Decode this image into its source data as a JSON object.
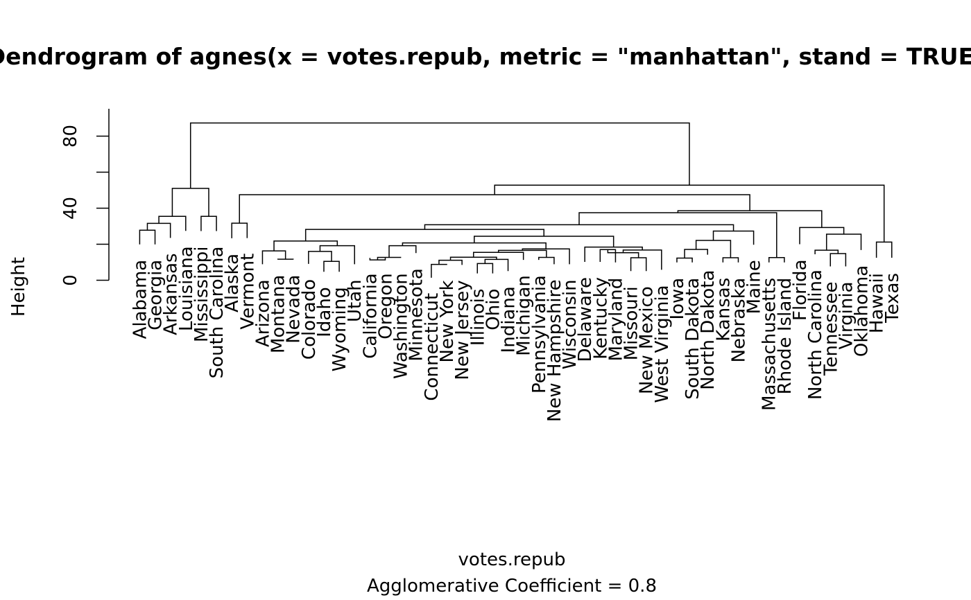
{
  "chart_data": {
    "type": "dendrogram",
    "title": "Dendrogram of  agnes(x = votes.repub, metric = \"manhattan\", stand = TRUE)",
    "xlabel": "votes.repub",
    "sublabel": "Agglomerative Coefficient =  0.8",
    "ylabel": "Height",
    "ylim": [
      0,
      95
    ],
    "yticks": [
      0,
      20,
      40,
      60,
      80
    ],
    "ytick_labels": [
      "0",
      "",
      "40",
      "",
      "80"
    ],
    "leaves": [
      "Alabama",
      "Georgia",
      "Arkansas",
      "Louisiana",
      "Mississippi",
      "South Carolina",
      "Alaska",
      "Vermont",
      "Arizona",
      "Montana",
      "Nevada",
      "Colorado",
      "Idaho",
      "Wyoming",
      "Utah",
      "California",
      "Oregon",
      "Washington",
      "Minnesota",
      "Connecticut",
      "New York",
      "New Jersey",
      "Illinois",
      "Ohio",
      "Indiana",
      "Michigan",
      "Pennsylvania",
      "New Hampshire",
      "Wisconsin",
      "Delaware",
      "Kentucky",
      "Maryland",
      "Missouri",
      "New Mexico",
      "West Virginia",
      "Iowa",
      "South Dakota",
      "North Dakota",
      "Kansas",
      "Nebraska",
      "Maine",
      "Massachusetts",
      "Rhode Island",
      "Florida",
      "North Carolina",
      "Tennessee",
      "Virginia",
      "Oklahoma",
      "Hawaii",
      "Texas"
    ],
    "leaf_heights": [
      19.9,
      19.9,
      23.5,
      27.4,
      27.3,
      27.3,
      23.3,
      23.4,
      8.9,
      11.5,
      11.5,
      9.1,
      4.7,
      4.7,
      8.9,
      12.4,
      12.4,
      12.4,
      15.1,
      1.4,
      8.5,
      8.5,
      3.8,
      3.8,
      5.1,
      11.3,
      11.3,
      8.9,
      8.9,
      10.2,
      10.2,
      9.9,
      5.1,
      5.1,
      5.8,
      9.9,
      9.9,
      14.2,
      9.9,
      9.9,
      19.7,
      9.9,
      9.9,
      20.0,
      14.4,
      7.7,
      7.7,
      16.8,
      12.5,
      12.5
    ],
    "merges": [
      {
        "left": "Alabama",
        "right": "Georgia",
        "height": 27.8
      },
      {
        "left": "Alabama,Georgia",
        "right": "Arkansas",
        "height": 31.6
      },
      {
        "left": "Alabama,Georgia,Arkansas",
        "right": "Louisiana",
        "height": 35.5
      },
      {
        "left": "Mississippi",
        "right": "South Carolina",
        "height": 35.5
      },
      {
        "left": "Alabama..Louisiana",
        "right": "Mississippi,South Carolina",
        "height": 51.0
      },
      {
        "left": "Alaska",
        "right": "Vermont",
        "height": 31.7
      },
      {
        "left": "Montana",
        "right": "Nevada",
        "height": 11.7
      },
      {
        "left": "Arizona",
        "right": "Montana,Nevada",
        "height": 16.3
      },
      {
        "left": "Idaho",
        "right": "Wyoming",
        "height": 10.5
      },
      {
        "left": "Colorado",
        "right": "Idaho,Wyoming",
        "height": 16.0
      },
      {
        "left": "Colorado,Idaho,Wyoming",
        "right": "Utah",
        "height": 19.2
      },
      {
        "left": "Arizona..Nevada",
        "right": "Colorado..Utah",
        "height": 21.8
      },
      {
        "left": "California",
        "right": "Oregon",
        "height": 11.3
      },
      {
        "left": "California,Oregon",
        "right": "Washington",
        "height": 12.7
      },
      {
        "left": "California..Washington",
        "right": "Minnesota",
        "height": 19.2
      },
      {
        "left": "Connecticut",
        "right": "New York",
        "height": 8.8
      },
      {
        "left": "Connecticut,New York",
        "right": "New Jersey",
        "height": 11.1
      },
      {
        "left": "Illinois",
        "right": "Ohio",
        "height": 9.3
      },
      {
        "left": "Illinois,Ohio",
        "right": "Indiana",
        "height": 11.6
      },
      {
        "left": "Illinois,Ohio,Indiana",
        "right": "Connecticut..New Jersey",
        "height": 12.8
      },
      {
        "left": "Connecticut..Indiana",
        "right": "Michigan",
        "height": 15.5
      },
      {
        "left": "Pennsylvania",
        "right": "New Hampshire",
        "height": 12.7
      },
      {
        "left": "Connecticut..Michigan",
        "right": "Pennsylvania,New Hampshire",
        "height": 16.6
      },
      {
        "left": "Connecticut..New Hampshire",
        "right": "Wisconsin",
        "height": 17.4
      },
      {
        "left": "Connecticut..Wisconsin",
        "right": "California..Minnesota",
        "height": 20.7
      },
      {
        "left": "Kentucky",
        "right": "Maryland",
        "height": 17.0
      },
      {
        "left": "Missouri",
        "right": "New Mexico",
        "height": 12.5
      },
      {
        "left": "Missouri,New Mexico",
        "right": "Kentucky,Maryland",
        "height": 15.3
      },
      {
        "left": "Kentucky..New Mexico",
        "right": "West Virginia",
        "height": 16.8
      },
      {
        "left": "Delaware",
        "right": "Kentucky..West Virginia",
        "height": 18.4
      },
      {
        "left": "California..Wisconsin",
        "right": "Delaware..West Virginia",
        "height": 24.4
      },
      {
        "left": "Arizona..Utah",
        "right": "California..West Virginia",
        "height": 28.2
      },
      {
        "left": "Iowa",
        "right": "South Dakota",
        "height": 12.3
      },
      {
        "left": "Iowa,South Dakota",
        "right": "North Dakota",
        "height": 17.1
      },
      {
        "left": "Kansas",
        "right": "Nebraska",
        "height": 12.5
      },
      {
        "left": "Iowa..North Dakota",
        "right": "Kansas,Nebraska",
        "height": 22.1
      },
      {
        "left": "Iowa..Nebraska",
        "right": "Maine",
        "height": 27.3
      },
      {
        "left": "Arizona..West Virginia",
        "right": "Iowa..Maine",
        "height": 30.8
      },
      {
        "left": "Massachusetts",
        "right": "Rhode Island",
        "height": 12.6
      },
      {
        "left": "Arizona..Maine",
        "right": "Massachusetts,Rhode Island",
        "height": 37.5
      },
      {
        "left": "Tennessee",
        "right": "Virginia",
        "height": 14.8
      },
      {
        "left": "North Carolina",
        "right": "Tennessee,Virginia",
        "height": 16.7
      },
      {
        "left": "North Carolina..Virginia",
        "right": "Oklahoma",
        "height": 25.6
      },
      {
        "left": "Florida",
        "right": "North Carolina..Oklahoma",
        "height": 29.3
      },
      {
        "left": "Arizona..Rhode Island",
        "right": "Florida..Oklahoma",
        "height": 38.6
      },
      {
        "left": "Alaska,Vermont",
        "right": "Arizona..Oklahoma",
        "height": 47.5
      },
      {
        "left": "Hawaii",
        "right": "Texas",
        "height": 21.2
      },
      {
        "left": "Alaska..Oklahoma",
        "right": "Hawaii,Texas",
        "height": 52.8
      },
      {
        "left": "Alabama..South Carolina",
        "right": "Alaska..Texas",
        "height": 87.3
      }
    ]
  }
}
